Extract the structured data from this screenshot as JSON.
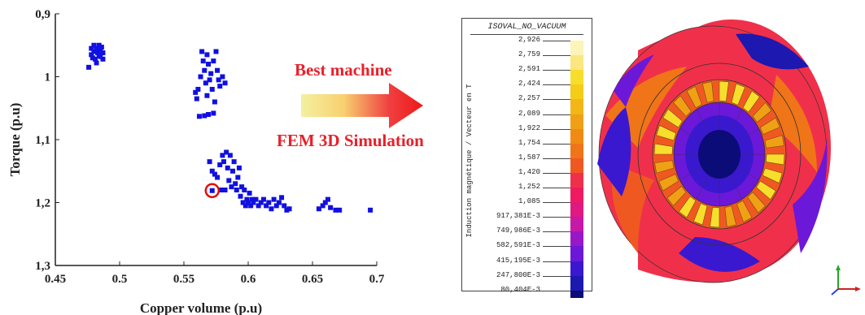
{
  "chart_data": {
    "type": "scatter",
    "title": "",
    "xlabel": "Copper volume (p.u)",
    "ylabel": "Torque (p.u)",
    "xlim": [
      0.45,
      0.7
    ],
    "ylim": [
      0.9,
      1.3
    ],
    "y_inverted": true,
    "x_ticks": [
      "0.45",
      "0.5",
      "0.55",
      "0.6",
      "0.65",
      "0.7"
    ],
    "y_ticks": [
      "0,9",
      "1",
      "1,1",
      "1,2",
      "1,3"
    ],
    "marker_color": "#1010e0",
    "highlight_color": "#e01010",
    "highlight_point": {
      "x": 0.572,
      "y": 1.181
    },
    "points": [
      {
        "x": 0.476,
        "y": 0.985
      },
      {
        "x": 0.478,
        "y": 0.955
      },
      {
        "x": 0.478,
        "y": 0.965
      },
      {
        "x": 0.48,
        "y": 0.95
      },
      {
        "x": 0.48,
        "y": 0.96
      },
      {
        "x": 0.481,
        "y": 0.972
      },
      {
        "x": 0.482,
        "y": 0.955
      },
      {
        "x": 0.483,
        "y": 0.962
      },
      {
        "x": 0.484,
        "y": 0.95
      },
      {
        "x": 0.485,
        "y": 0.958
      },
      {
        "x": 0.485,
        "y": 0.968
      },
      {
        "x": 0.486,
        "y": 0.953
      },
      {
        "x": 0.487,
        "y": 0.962
      },
      {
        "x": 0.487,
        "y": 0.972
      },
      {
        "x": 0.479,
        "y": 0.97
      },
      {
        "x": 0.482,
        "y": 0.978
      },
      {
        "x": 0.484,
        "y": 0.966
      },
      {
        "x": 0.559,
        "y": 1.025
      },
      {
        "x": 0.56,
        "y": 1.035
      },
      {
        "x": 0.561,
        "y": 1.02
      },
      {
        "x": 0.562,
        "y": 1.063
      },
      {
        "x": 0.563,
        "y": 1.0
      },
      {
        "x": 0.564,
        "y": 0.96
      },
      {
        "x": 0.565,
        "y": 0.975
      },
      {
        "x": 0.566,
        "y": 0.99
      },
      {
        "x": 0.566,
        "y": 1.062
      },
      {
        "x": 0.567,
        "y": 1.01
      },
      {
        "x": 0.568,
        "y": 0.965
      },
      {
        "x": 0.568,
        "y": 1.03
      },
      {
        "x": 0.569,
        "y": 0.98
      },
      {
        "x": 0.569,
        "y": 1.06
      },
      {
        "x": 0.57,
        "y": 1.005
      },
      {
        "x": 0.571,
        "y": 0.995
      },
      {
        "x": 0.572,
        "y": 1.02
      },
      {
        "x": 0.573,
        "y": 0.975
      },
      {
        "x": 0.573,
        "y": 1.058
      },
      {
        "x": 0.574,
        "y": 1.04
      },
      {
        "x": 0.575,
        "y": 0.96
      },
      {
        "x": 0.576,
        "y": 0.99
      },
      {
        "x": 0.577,
        "y": 1.005
      },
      {
        "x": 0.578,
        "y": 1.015
      },
      {
        "x": 0.58,
        "y": 1.0
      },
      {
        "x": 0.582,
        "y": 1.01
      },
      {
        "x": 0.57,
        "y": 1.135
      },
      {
        "x": 0.572,
        "y": 1.15
      },
      {
        "x": 0.574,
        "y": 1.155
      },
      {
        "x": 0.576,
        "y": 1.16
      },
      {
        "x": 0.578,
        "y": 1.14
      },
      {
        "x": 0.579,
        "y": 1.18
      },
      {
        "x": 0.58,
        "y": 1.125
      },
      {
        "x": 0.581,
        "y": 1.135
      },
      {
        "x": 0.582,
        "y": 1.18
      },
      {
        "x": 0.583,
        "y": 1.12
      },
      {
        "x": 0.584,
        "y": 1.145
      },
      {
        "x": 0.585,
        "y": 1.165
      },
      {
        "x": 0.586,
        "y": 1.125
      },
      {
        "x": 0.587,
        "y": 1.175
      },
      {
        "x": 0.588,
        "y": 1.15
      },
      {
        "x": 0.589,
        "y": 1.135
      },
      {
        "x": 0.59,
        "y": 1.17
      },
      {
        "x": 0.591,
        "y": 1.18
      },
      {
        "x": 0.592,
        "y": 1.16
      },
      {
        "x": 0.593,
        "y": 1.145
      },
      {
        "x": 0.594,
        "y": 1.19
      },
      {
        "x": 0.595,
        "y": 1.175
      },
      {
        "x": 0.596,
        "y": 1.2
      },
      {
        "x": 0.597,
        "y": 1.18
      },
      {
        "x": 0.598,
        "y": 1.205
      },
      {
        "x": 0.599,
        "y": 1.195
      },
      {
        "x": 0.6,
        "y": 1.2
      },
      {
        "x": 0.601,
        "y": 1.185
      },
      {
        "x": 0.602,
        "y": 1.205
      },
      {
        "x": 0.603,
        "y": 1.195
      },
      {
        "x": 0.604,
        "y": 1.2
      },
      {
        "x": 0.606,
        "y": 1.195
      },
      {
        "x": 0.608,
        "y": 1.205
      },
      {
        "x": 0.61,
        "y": 1.2
      },
      {
        "x": 0.612,
        "y": 1.195
      },
      {
        "x": 0.614,
        "y": 1.205
      },
      {
        "x": 0.616,
        "y": 1.2
      },
      {
        "x": 0.618,
        "y": 1.21
      },
      {
        "x": 0.62,
        "y": 1.195
      },
      {
        "x": 0.622,
        "y": 1.205
      },
      {
        "x": 0.624,
        "y": 1.2
      },
      {
        "x": 0.626,
        "y": 1.192
      },
      {
        "x": 0.628,
        "y": 1.205
      },
      {
        "x": 0.63,
        "y": 1.212
      },
      {
        "x": 0.632,
        "y": 1.21
      },
      {
        "x": 0.655,
        "y": 1.21
      },
      {
        "x": 0.658,
        "y": 1.205
      },
      {
        "x": 0.66,
        "y": 1.2
      },
      {
        "x": 0.662,
        "y": 1.195
      },
      {
        "x": 0.664,
        "y": 1.208
      },
      {
        "x": 0.668,
        "y": 1.212
      },
      {
        "x": 0.671,
        "y": 1.212
      },
      {
        "x": 0.695,
        "y": 1.212
      }
    ]
  },
  "annotations": {
    "best_machine": "Best machine",
    "fem_simulation": "FEM 3D Simulation",
    "arrow_gradient": [
      "#f4f0a0",
      "#f8d070",
      "#f04040",
      "#ee1818"
    ]
  },
  "legend": {
    "title": "ISOVAL_NO_VACUUM",
    "ylabel": "Induction magnétique / Vecteur en T",
    "entries": [
      {
        "value": "2,926",
        "color": "#fcf4b8"
      },
      {
        "value": "2,759",
        "color": "#fbe680"
      },
      {
        "value": "2,591",
        "color": "#f8de2c"
      },
      {
        "value": "2,424",
        "color": "#f5cc18"
      },
      {
        "value": "2,257",
        "color": "#f2b616"
      },
      {
        "value": "2,089",
        "color": "#f0a014"
      },
      {
        "value": "1,922",
        "color": "#f08a12"
      },
      {
        "value": "1,754",
        "color": "#f07418"
      },
      {
        "value": "1,587",
        "color": "#f05822"
      },
      {
        "value": "1,420",
        "color": "#f0304a"
      },
      {
        "value": "1,252",
        "color": "#f01a60"
      },
      {
        "value": "1,085",
        "color": "#e01880"
      },
      {
        "value": "917,381E-3",
        "color": "#c818a8"
      },
      {
        "value": "749,986E-3",
        "color": "#9818c8"
      },
      {
        "value": "582,591E-3",
        "color": "#6c18d8"
      },
      {
        "value": "415,195E-3",
        "color": "#3a18d0"
      },
      {
        "value": "247,800E-3",
        "color": "#1c18b0"
      },
      {
        "value": "80,404E-3",
        "color": "#0c0c78"
      }
    ]
  },
  "machine": {
    "colors": [
      "#f0304a",
      "#f05822",
      "#f07418",
      "#f0a014",
      "#f8de2c",
      "#6c18d8",
      "#3a18d0",
      "#1c18b0",
      "#0c0c78"
    ]
  }
}
